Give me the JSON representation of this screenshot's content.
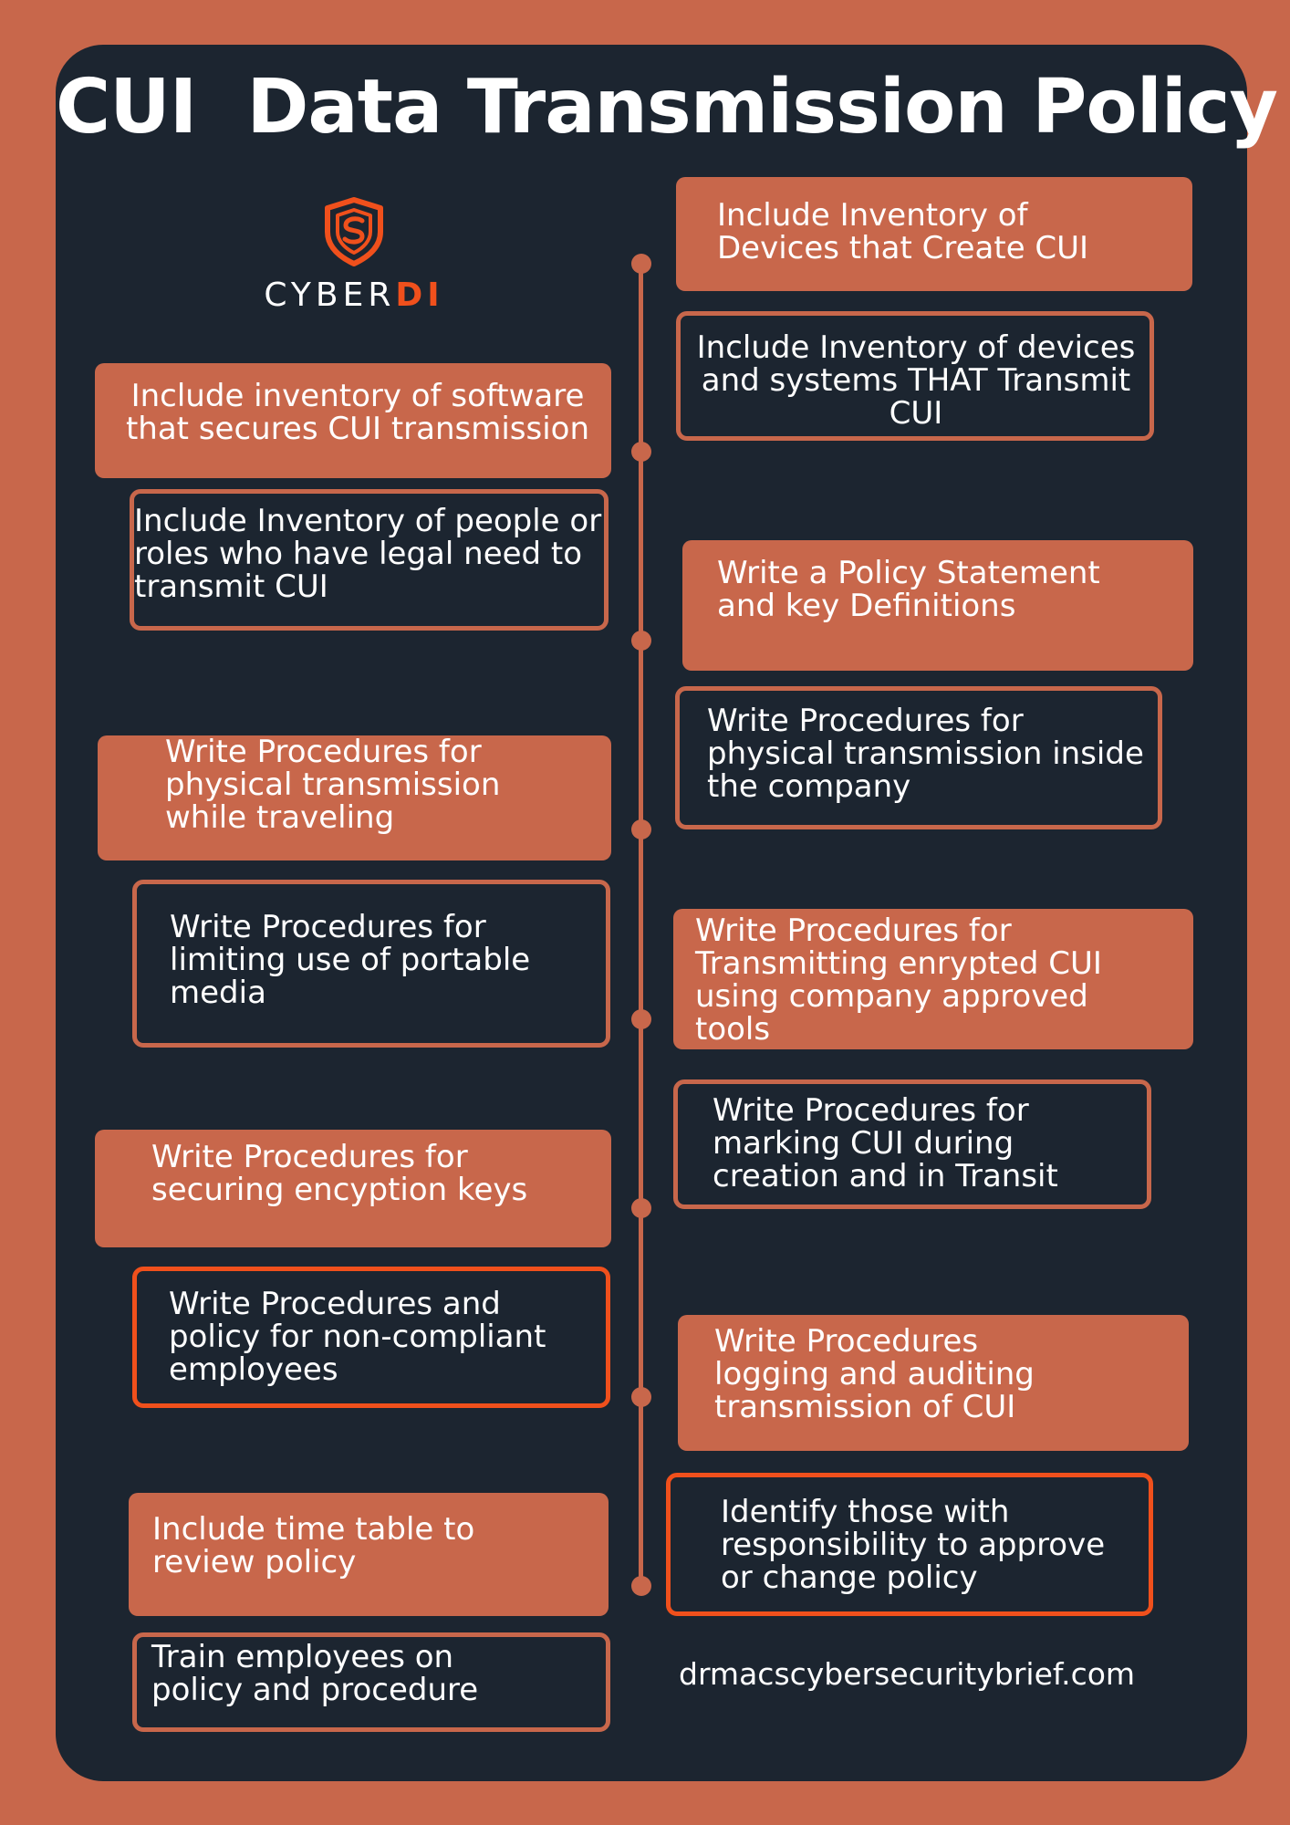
{
  "title": "CUI  Data Transmission Policy",
  "logo": {
    "name_prefix": "CYBER",
    "name_accent": "DI",
    "icon": "shield-s-icon"
  },
  "colors": {
    "background": "#c8674b",
    "card": "#1c2530",
    "accent": "#f0501c",
    "text": "#ffffff"
  },
  "right_column": [
    {
      "text": "Include Inventory of Devices that Create CUI",
      "style": "filled"
    },
    {
      "text": "Include Inventory of devices and systems THAT Transmit CUI",
      "style": "outline"
    },
    {
      "text": "Write a Policy Statement and key Definitions",
      "style": "filled"
    },
    {
      "text": "Write Procedures for physical transmission inside the company",
      "style": "outline"
    },
    {
      "text": "Write Procedures for Transmitting enrypted CUI using company approved tools",
      "style": "filled"
    },
    {
      "text": "Write Procedures for marking CUI  during creation and in Transit",
      "style": "outline"
    },
    {
      "text": "Write Procedures logging and auditing transmission of CUI",
      "style": "filled"
    },
    {
      "text": "Identify those with responsibility to approve or change policy",
      "style": "outline-accent"
    }
  ],
  "left_column": [
    {
      "text": "Include inventory of software that secures CUI transmission",
      "style": "filled"
    },
    {
      "text": "Include Inventory of people or roles who have legal need to transmit CUI",
      "style": "outline"
    },
    {
      "text": "Write Procedures for physical transmission while traveling",
      "style": "filled"
    },
    {
      "text": "Write Procedures for limiting use of portable media",
      "style": "outline"
    },
    {
      "text": "Write Procedures for securing encyption keys",
      "style": "filled"
    },
    {
      "text": "Write Procedures and policy for non-compliant employees",
      "style": "outline-accent"
    },
    {
      "text": "Include time table to review policy",
      "style": "filled"
    },
    {
      "text": "Train employees on policy and procedure",
      "style": "outline"
    }
  ],
  "footer_url": "drmacscybersecuritybrief.com"
}
